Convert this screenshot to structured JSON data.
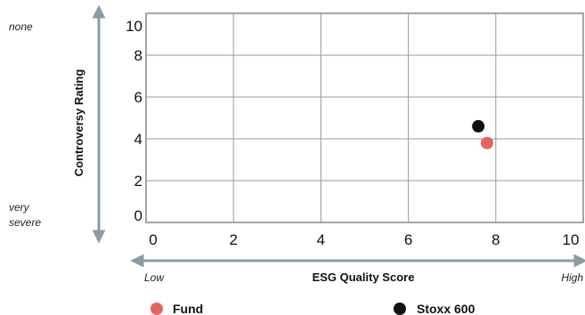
{
  "chart_data": {
    "type": "scatter",
    "xlabel": "ESG Quality Score",
    "ylabel": "Controversy Rating",
    "xlim": [
      0,
      10
    ],
    "ylim": [
      0,
      10
    ],
    "x_ticks": [
      0,
      2,
      4,
      6,
      8,
      10
    ],
    "y_ticks": [
      0,
      2,
      4,
      6,
      8,
      10
    ],
    "x_end_labels": {
      "low": "Low",
      "high": "High"
    },
    "y_end_labels": {
      "top": "none",
      "bottom_line1": "very",
      "bottom_line2": "severe"
    },
    "grid": true,
    "legend_position": "bottom",
    "series": [
      {
        "name": "Fund",
        "color": "#e8635a",
        "x": 7.8,
        "y": 3.8
      },
      {
        "name": "Stoxx 600",
        "color": "#111111",
        "x": 7.6,
        "y": 4.6
      }
    ]
  }
}
